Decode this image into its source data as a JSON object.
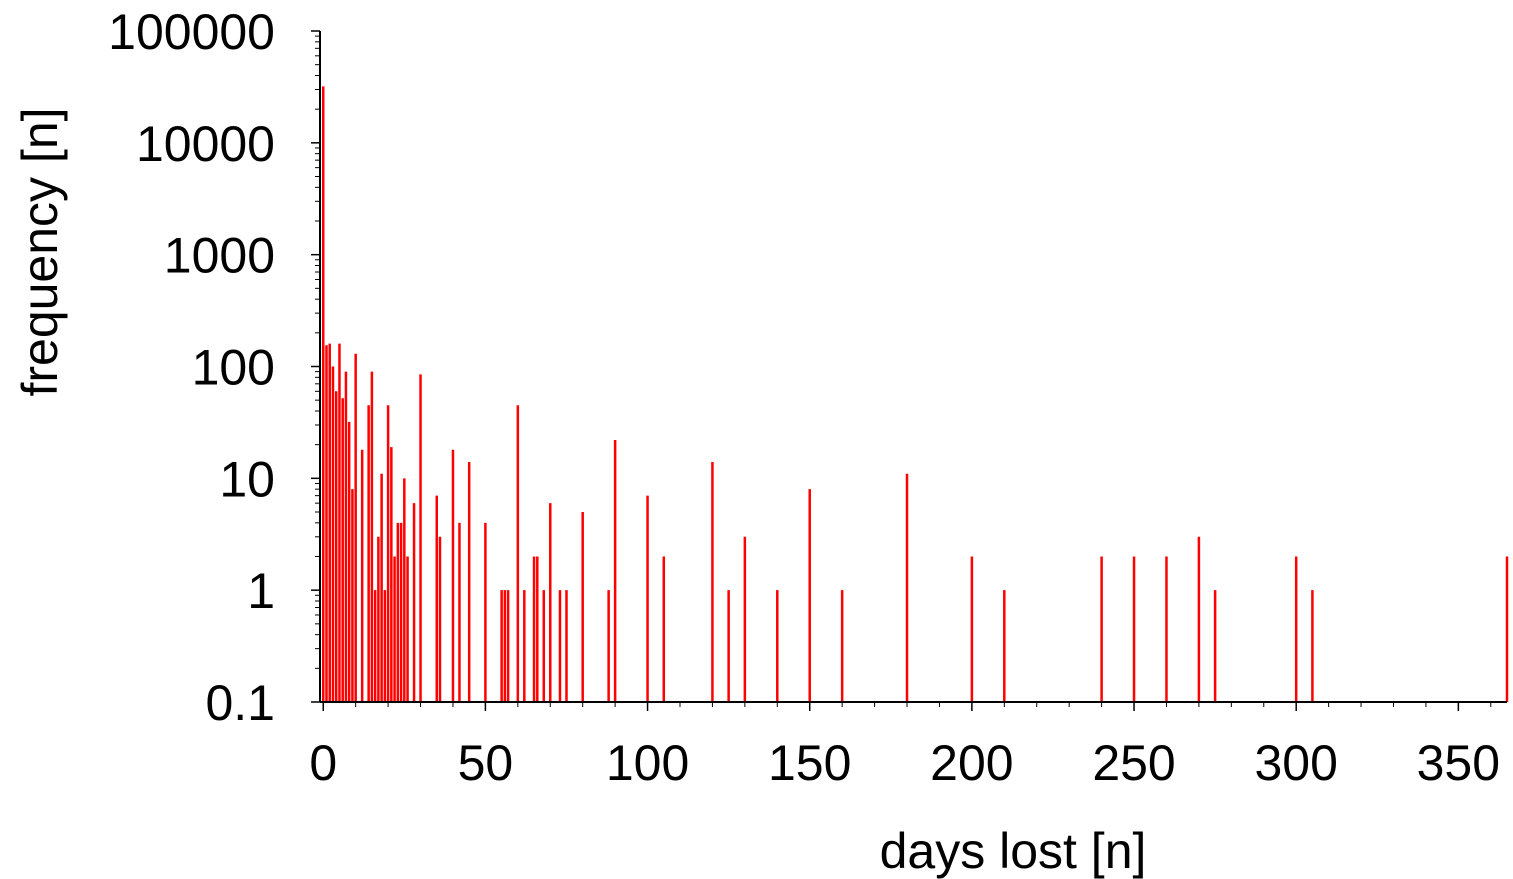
{
  "chart_data": {
    "type": "bar",
    "xlabel": "days lost [n]",
    "ylabel": "frequency [n]",
    "xscale": "linear",
    "yscale": "log",
    "xlim": [
      -1,
      365
    ],
    "ylim": [
      0.1,
      100000
    ],
    "xticks": [
      0,
      50,
      100,
      150,
      200,
      250,
      300,
      350
    ],
    "xtick_labels": [
      "0",
      "50",
      "100",
      "150",
      "200",
      "250",
      "300",
      "350"
    ],
    "yticks": [
      0.1,
      1,
      10,
      100,
      1000,
      10000,
      100000
    ],
    "ytick_labels": [
      "0.1",
      "1",
      "10",
      "100",
      "1000",
      "10000",
      "100000"
    ],
    "grid": false,
    "bar_color": "#ff0000",
    "x": [
      0,
      1,
      2,
      3,
      4,
      5,
      6,
      7,
      8,
      9,
      10,
      12,
      14,
      15,
      16,
      17,
      18,
      19,
      20,
      21,
      22,
      23,
      24,
      25,
      26,
      28,
      30,
      35,
      36,
      40,
      42,
      45,
      50,
      55,
      56,
      57,
      60,
      62,
      65,
      66,
      68,
      70,
      73,
      75,
      80,
      88,
      90,
      100,
      105,
      120,
      125,
      130,
      140,
      150,
      160,
      180,
      200,
      210,
      240,
      250,
      260,
      270,
      275,
      300,
      305,
      365
    ],
    "values": [
      32000,
      155,
      160,
      100,
      60,
      160,
      52,
      90,
      32,
      8,
      130,
      18,
      45,
      90,
      1,
      3,
      11,
      1,
      45,
      19,
      2,
      4,
      4,
      10,
      2,
      6,
      85,
      7,
      3,
      18,
      4,
      14,
      4,
      1,
      1,
      1,
      45,
      1,
      2,
      2,
      1,
      6,
      1,
      1,
      5,
      1,
      22,
      7,
      2,
      14,
      1,
      3,
      1,
      8,
      1,
      11,
      2,
      1,
      2,
      2,
      2,
      3,
      1,
      2,
      1,
      2
    ]
  }
}
